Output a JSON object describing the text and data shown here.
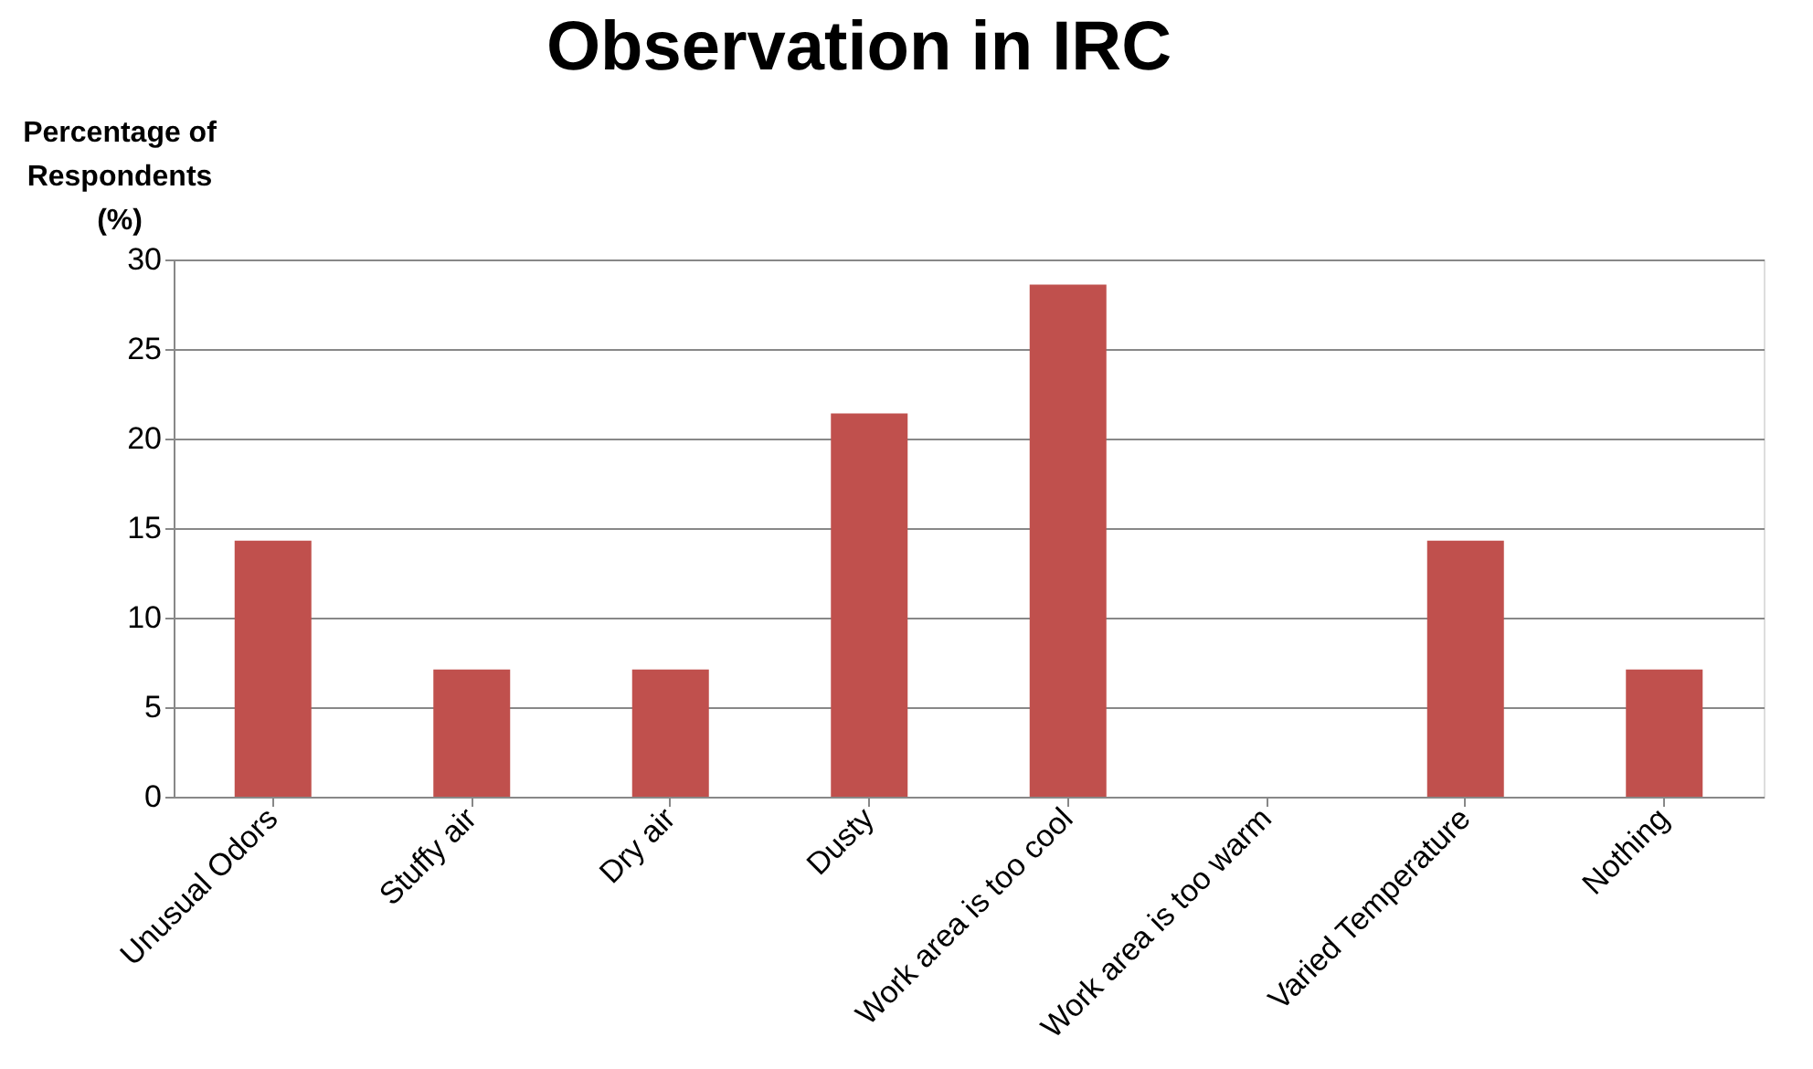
{
  "chart_data": {
    "type": "bar",
    "title": "Observation in IRC",
    "ylabel": "Percentage of\nRespondents\n(%)",
    "categories": [
      "Unusual Odors",
      "Stuffy air",
      "Dry air",
      "Dusty",
      "Work area is too cool",
      "Work area is too warm",
      "Varied Temperature",
      "Nothing"
    ],
    "values": [
      14.3,
      7.1,
      7.1,
      21.4,
      28.6,
      0,
      14.3,
      7.1
    ],
    "color": "#c0504d",
    "ylim": [
      0,
      30
    ],
    "yticks": [
      0,
      5,
      10,
      15,
      20,
      25,
      30
    ],
    "grid": "y"
  }
}
